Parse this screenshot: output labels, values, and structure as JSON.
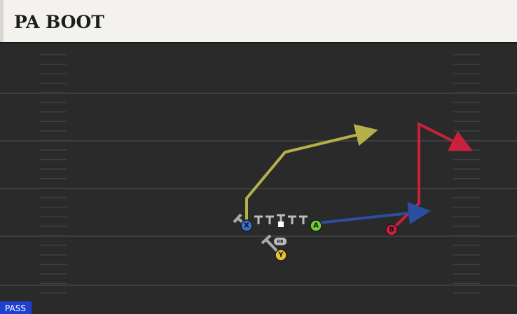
{
  "header": {
    "title": "PA BOOT"
  },
  "players": [
    {
      "label": "X"
    },
    {
      "label": "A"
    },
    {
      "label": "B"
    },
    {
      "label": "Y"
    },
    {
      "label": "RB"
    }
  ],
  "play_type": "PASS"
}
